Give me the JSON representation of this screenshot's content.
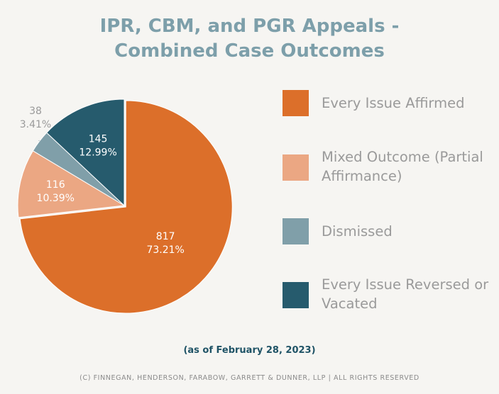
{
  "title": {
    "line1": "IPR, CBM, and PGR Appeals -",
    "line2": "Combined Case Outcomes"
  },
  "chart_data": {
    "type": "pie",
    "title": "IPR, CBM, and PGR Appeals - Combined Case Outcomes",
    "slices": [
      {
        "name": "Every Issue Affirmed",
        "value": 817,
        "percent_label": "73.21%",
        "color": "#dc6f2a",
        "label_color": "#ffffff"
      },
      {
        "name": "Mixed Outcome (Partial Affirmance)",
        "value": 116,
        "percent_label": "10.39%",
        "color": "#eba783",
        "label_color": "#ffffff"
      },
      {
        "name": "Dismissed",
        "value": 38,
        "percent_label": "3.41%",
        "color": "#809fa9",
        "label_color": "#9a9a9a"
      },
      {
        "name": "Every Issue Reversed or Vacated",
        "value": 145,
        "percent_label": "12.99%",
        "color": "#265b6d",
        "label_color": "#ffffff"
      }
    ],
    "legend_position": "right"
  },
  "legend": {
    "items": [
      {
        "label": "Every Issue Affirmed",
        "color": "#dc6f2a"
      },
      {
        "label": "Mixed Outcome (Partial Affirmance)",
        "color": "#eba783"
      },
      {
        "label": "Dismissed",
        "color": "#809fa9"
      },
      {
        "label": "Every Issue Reversed or Vacated",
        "color": "#265b6d"
      }
    ]
  },
  "date_note": "(as of February 28, 2023)",
  "copyright": "(C) FINNEGAN, HENDERSON, FARABOW, GARRETT & DUNNER, LLP | ALL RIGHTS RESERVED"
}
